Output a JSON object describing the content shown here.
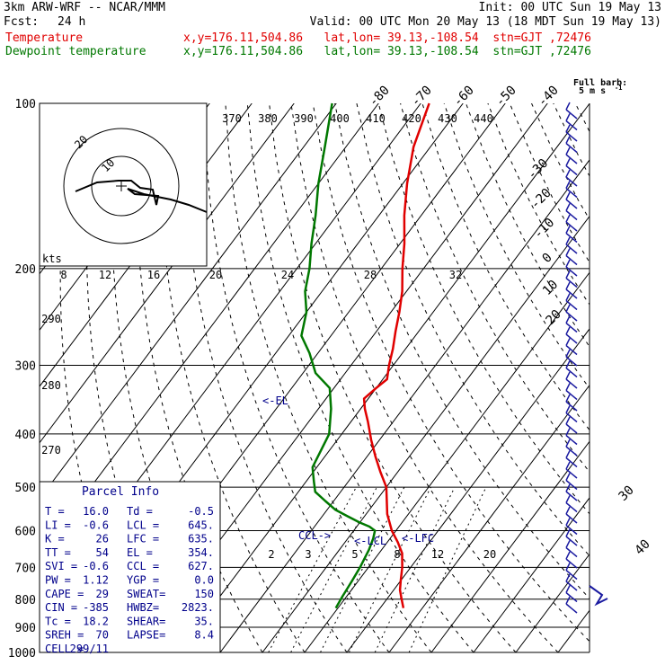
{
  "header": {
    "model": "3km ARW-WRF -- NCAR/MMM",
    "init": "Init: 00 UTC Sun 19 May 13",
    "fcst_label": "Fcst:",
    "fcst_value": "24 h",
    "valid": "Valid: 00 UTC Mon 20 May 13 (18 MDT Sun 19 May 13)"
  },
  "legend": [
    {
      "name": "Temperature",
      "color": "#e00000",
      "info": "x,y=176.11,504.86   lat,lon= 39.13,-108.54  stn=GJT ,72476"
    },
    {
      "name": "Dewpoint temperature",
      "color": "#007800",
      "info": "x,y=176.11,504.86   lat,lon= 39.13,-108.54  stn=GJT ,72476"
    }
  ],
  "full_barb": {
    "line1": "Full barb:",
    "line2": "5 m s",
    "exp": "-1"
  },
  "markers": {
    "el": "<-EL",
    "ccl": "CCL->",
    "lcl": "<-LCL",
    "lfc": "<-LFC"
  },
  "parcel_info": {
    "title": "Parcel Info",
    "rows": [
      [
        "T  =",
        "16.0",
        "Td  =",
        "-0.5"
      ],
      [
        "LI =",
        "-0.6",
        "LCL =",
        "645."
      ],
      [
        "K  =",
        "26",
        "LFC =",
        "635."
      ],
      [
        "TT =",
        "54",
        "EL  =",
        "354."
      ],
      [
        "SVI =",
        "-0.6",
        "CCL =",
        "627."
      ],
      [
        "PW =",
        "1.12",
        "YGP =",
        "0.0"
      ],
      [
        "CAPE =",
        "29",
        "SWEAT=",
        "150"
      ],
      [
        "CIN =",
        "-385",
        "HWBZ=",
        "2823."
      ],
      [
        "Tc =",
        "18.2",
        "SHEAR=",
        "35."
      ],
      [
        "SREH =",
        "70",
        "LAPSE=",
        "8.4"
      ],
      [
        "CELL =",
        "299/11",
        "",
        ""
      ]
    ]
  },
  "hodograph": {
    "unit": "kts",
    "ring_labels": [
      "10",
      "20"
    ]
  },
  "theta_e_labels": [
    "370",
    "380",
    "390",
    "400",
    "410",
    "420",
    "430",
    "440"
  ],
  "mixing_ratio_labels_top": [
    "8",
    "12",
    "16",
    "20",
    "24",
    "28",
    "32"
  ],
  "mixing_ratio_labels_bottom": [
    "2",
    "3",
    "5",
    "8",
    "12",
    "20"
  ],
  "height_labels": [
    "290",
    "280",
    "270"
  ],
  "chart_data": {
    "type": "line",
    "title": "",
    "y_scale": "log-pressure",
    "ylim": [
      1000,
      100
    ],
    "y_ticks": [
      100,
      200,
      300,
      400,
      500,
      600,
      700,
      800,
      900,
      1000
    ],
    "isotherm_labels": [
      -80,
      -70,
      -60,
      -50,
      -40,
      -30,
      -20,
      -10,
      0,
      10,
      20,
      30,
      40
    ],
    "series": [
      {
        "name": "Temperature",
        "color": "#e00000",
        "pressure": [
          830,
          800,
          770,
          740,
          700,
          660,
          630,
          600,
          560,
          500,
          470,
          440,
          410,
          380,
          360,
          345,
          330,
          318,
          300,
          280,
          260,
          240,
          220,
          200,
          180,
          160,
          140,
          120,
          100
        ],
        "values": [
          15.5,
          13.5,
          11.5,
          10,
          8,
          5.5,
          2.5,
          -1,
          -5,
          -10,
          -14,
          -18,
          -22,
          -26,
          -29,
          -31,
          -30,
          -29,
          -31,
          -33,
          -35.5,
          -38,
          -41,
          -45,
          -49,
          -54,
          -59,
          -64,
          -68
        ]
      },
      {
        "name": "Dewpoint temperature",
        "color": "#007800",
        "pressure": [
          830,
          790,
          740,
          700,
          650,
          620,
          600,
          590,
          580,
          565,
          550,
          530,
          510,
          490,
          470,
          460,
          400,
          360,
          330,
          310,
          285,
          265,
          240,
          220,
          200,
          180,
          160,
          140,
          120,
          100
        ],
        "values": [
          -0.5,
          -1,
          -1.5,
          -2,
          -3,
          -4,
          -5,
          -7,
          -10,
          -14,
          -18,
          -22,
          -26,
          -28,
          -30,
          -31,
          -33,
          -37,
          -41,
          -47,
          -52,
          -57,
          -60,
          -64,
          -67,
          -71,
          -75,
          -80,
          -85,
          -91
        ]
      }
    ]
  },
  "colors": {
    "temperature": "#e00000",
    "dewpoint": "#007800",
    "wind": "#1a1aa0",
    "labels": "#00008b",
    "grid": "#000000"
  }
}
